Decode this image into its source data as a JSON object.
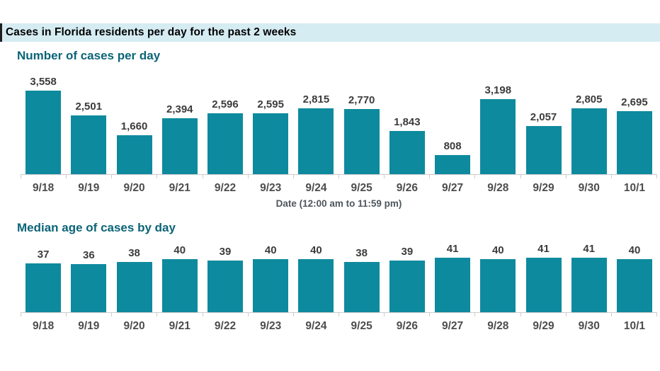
{
  "header": {
    "title": "Cases in Florida residents per day for the past 2 weeks"
  },
  "colors": {
    "bar": "#0e8a9e",
    "header_background": "#d6ecf3",
    "header_accent": "#1f1f1f",
    "header_text": "#000000",
    "section_title": "#0b6477",
    "value_label": "#3c3c3c",
    "axis_tick_label": "#4d4d4d",
    "axis_line": "#cccccc",
    "x_axis_title": "#4d565c"
  },
  "chart_data": [
    {
      "type": "bar",
      "title": "Number of cases per day",
      "categories": [
        "9/18",
        "9/19",
        "9/20",
        "9/21",
        "9/22",
        "9/23",
        "9/24",
        "9/25",
        "9/26",
        "9/27",
        "9/28",
        "9/29",
        "9/30",
        "10/1"
      ],
      "values": [
        3558,
        2501,
        1660,
        2394,
        2596,
        2595,
        2815,
        2770,
        1843,
        808,
        3198,
        2057,
        2805,
        2695
      ],
      "value_labels": [
        "3,558",
        "2,501",
        "1,660",
        "2,394",
        "2,596",
        "2,595",
        "2,815",
        "2,770",
        "1,843",
        "808",
        "3,198",
        "2,057",
        "2,805",
        "2,695"
      ],
      "xlabel": "Date (12:00 am to 11:59 pm)",
      "ylabel": "",
      "ylim": [
        0,
        3558
      ],
      "grid": false,
      "legend": "none",
      "bar_color": "#0e8a9e"
    },
    {
      "type": "bar",
      "title": "Median age of cases by day",
      "categories": [
        "9/18",
        "9/19",
        "9/20",
        "9/21",
        "9/22",
        "9/23",
        "9/24",
        "9/25",
        "9/26",
        "9/27",
        "9/28",
        "9/29",
        "9/30",
        "10/1"
      ],
      "values": [
        37,
        36,
        38,
        40,
        39,
        40,
        40,
        38,
        39,
        41,
        40,
        41,
        41,
        40
      ],
      "value_labels": [
        "37",
        "36",
        "38",
        "40",
        "39",
        "40",
        "40",
        "38",
        "39",
        "41",
        "40",
        "41",
        "41",
        "40"
      ],
      "xlabel": "",
      "ylabel": "",
      "ylim": [
        0,
        41
      ],
      "grid": false,
      "legend": "none",
      "bar_color": "#0e8a9e"
    }
  ]
}
